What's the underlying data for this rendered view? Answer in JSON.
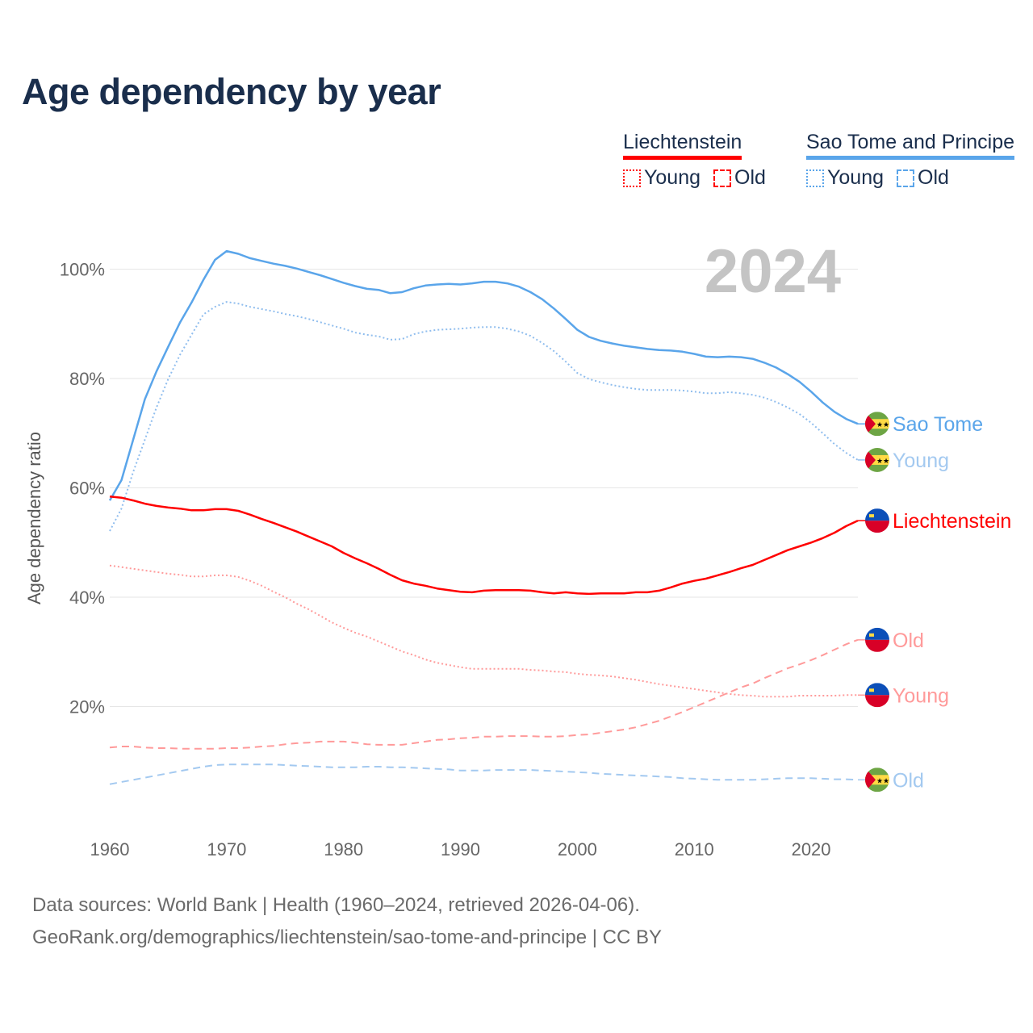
{
  "title": "Age dependency by year",
  "legend": [
    {
      "name": "Liechtenstein",
      "color": "#ff0000",
      "items": [
        {
          "label": "Young",
          "style": "dotted"
        },
        {
          "label": "Old",
          "style": "dashed"
        }
      ]
    },
    {
      "name": "Sao Tome and Principe",
      "color": "#5aa5ea",
      "items": [
        {
          "label": "Young",
          "style": "dotted"
        },
        {
          "label": "Old",
          "style": "dashed"
        }
      ]
    }
  ],
  "year_watermark": "2024",
  "sources": {
    "line1": "Data sources: World Bank | Health (1960–2024, retrieved 2026-04-06).",
    "line2": "GeoRank.org/demographics/liechtenstein/sao-tome-and-principe | CC BY"
  },
  "chart_data": {
    "type": "line",
    "title": "Age dependency by year",
    "xlabel": "",
    "ylabel": "Age dependency ratio",
    "xlim": [
      1960,
      2024
    ],
    "ylim": [
      0,
      105
    ],
    "grid": true,
    "x_ticks": [
      1960,
      1970,
      1980,
      1990,
      2000,
      2010,
      2020
    ],
    "y_ticks": [
      {
        "value": 20,
        "label": "20%"
      },
      {
        "value": 40,
        "label": "40%"
      },
      {
        "value": 60,
        "label": "60%"
      },
      {
        "value": 80,
        "label": "80%"
      },
      {
        "value": 100,
        "label": "100%"
      }
    ],
    "x_start": 1960,
    "series": [
      {
        "name": "Sao Tome and Principe",
        "end_label": "Sao Tome",
        "flag": "sao-tome",
        "color": "#5aa5ea",
        "label_color": "#5aa5ea",
        "dash": "solid",
        "values": [
          57.7,
          61.4,
          68.8,
          76.2,
          81.3,
          85.8,
          90.2,
          93.9,
          98.0,
          101.7,
          103.3,
          102.8,
          102.0,
          101.5,
          101.0,
          100.6,
          100.1,
          99.5,
          98.9,
          98.2,
          97.5,
          96.9,
          96.4,
          96.2,
          95.6,
          95.8,
          96.5,
          97.0,
          97.2,
          97.3,
          97.2,
          97.4,
          97.7,
          97.7,
          97.4,
          96.8,
          95.8,
          94.5,
          92.8,
          90.9,
          88.9,
          87.6,
          86.9,
          86.4,
          86.0,
          85.7,
          85.4,
          85.2,
          85.1,
          84.9,
          84.5,
          84.0,
          83.9,
          84.0,
          83.9,
          83.6,
          82.9,
          82.0,
          80.8,
          79.4,
          77.6,
          75.6,
          73.9,
          72.6,
          71.7
        ]
      },
      {
        "name": "Sao Tome and Principe Young",
        "end_label": "Young",
        "flag": "sao-tome",
        "color": "#8fbdee",
        "label_color": "#a3c9f0",
        "dash": "dotted",
        "values": [
          52.1,
          56.2,
          62.9,
          68.8,
          74.7,
          79.9,
          84.3,
          88.0,
          91.7,
          93.1,
          94.0,
          93.7,
          93.1,
          92.7,
          92.3,
          91.8,
          91.4,
          90.9,
          90.3,
          89.7,
          89.1,
          88.4,
          88.0,
          87.7,
          87.1,
          87.2,
          88.1,
          88.6,
          88.9,
          89.0,
          89.1,
          89.3,
          89.4,
          89.4,
          89.1,
          88.6,
          87.8,
          86.5,
          85.0,
          83.1,
          81.0,
          79.9,
          79.3,
          78.8,
          78.4,
          78.1,
          77.9,
          77.9,
          77.9,
          77.8,
          77.6,
          77.3,
          77.3,
          77.5,
          77.3,
          77.0,
          76.5,
          75.7,
          74.7,
          73.5,
          71.9,
          70.0,
          68.0,
          66.4,
          65.1
        ]
      },
      {
        "name": "Liechtenstein",
        "end_label": "Liechtenstein",
        "flag": "liechtenstein",
        "color": "#ff0000",
        "label_color": "#ff0000",
        "dash": "solid",
        "values": [
          58.4,
          58.2,
          57.7,
          57.1,
          56.7,
          56.4,
          56.2,
          55.9,
          55.9,
          56.1,
          56.1,
          55.8,
          55.1,
          54.3,
          53.6,
          52.8,
          52.0,
          51.1,
          50.2,
          49.3,
          48.1,
          47.1,
          46.2,
          45.2,
          44.1,
          43.1,
          42.5,
          42.1,
          41.6,
          41.3,
          41.0,
          40.9,
          41.2,
          41.3,
          41.3,
          41.3,
          41.2,
          40.9,
          40.7,
          40.9,
          40.7,
          40.6,
          40.7,
          40.7,
          40.7,
          40.9,
          40.9,
          41.2,
          41.8,
          42.5,
          43.0,
          43.4,
          44.0,
          44.6,
          45.3,
          45.9,
          46.8,
          47.7,
          48.6,
          49.3,
          50.0,
          50.8,
          51.8,
          53.0,
          54.0
        ]
      },
      {
        "name": "Liechtenstein Old",
        "end_label": "Old",
        "flag": "liechtenstein",
        "color": "#ff9a9a",
        "label_color": "#ff9a9a",
        "dash": "dashed",
        "values": [
          12.5,
          12.7,
          12.7,
          12.5,
          12.4,
          12.4,
          12.3,
          12.3,
          12.3,
          12.3,
          12.4,
          12.4,
          12.5,
          12.7,
          12.8,
          13.1,
          13.3,
          13.4,
          13.6,
          13.6,
          13.6,
          13.4,
          13.1,
          13.0,
          13.0,
          13.0,
          13.3,
          13.6,
          13.9,
          14.0,
          14.2,
          14.3,
          14.5,
          14.5,
          14.6,
          14.6,
          14.6,
          14.5,
          14.5,
          14.6,
          14.8,
          14.9,
          15.2,
          15.5,
          15.8,
          16.2,
          16.8,
          17.4,
          18.2,
          19.0,
          19.9,
          20.8,
          21.7,
          22.6,
          23.5,
          24.2,
          25.2,
          26.1,
          27.0,
          27.7,
          28.5,
          29.4,
          30.4,
          31.4,
          32.2
        ]
      },
      {
        "name": "Liechtenstein Young",
        "end_label": "Young",
        "flag": "liechtenstein",
        "color": "#ff9a9a",
        "label_color": "#ff9a9a",
        "dash": "dotted",
        "values": [
          45.8,
          45.5,
          45.2,
          44.9,
          44.6,
          44.3,
          44.1,
          43.8,
          43.8,
          44.0,
          44.0,
          43.7,
          43.0,
          42.1,
          41.0,
          40.0,
          38.8,
          37.8,
          36.6,
          35.4,
          34.4,
          33.5,
          32.8,
          31.9,
          31.0,
          30.1,
          29.4,
          28.6,
          28.0,
          27.6,
          27.2,
          26.9,
          26.9,
          26.9,
          26.9,
          26.9,
          26.7,
          26.6,
          26.4,
          26.3,
          26.0,
          25.8,
          25.7,
          25.5,
          25.2,
          24.9,
          24.5,
          24.1,
          23.8,
          23.5,
          23.2,
          22.9,
          22.6,
          22.3,
          22.1,
          22.0,
          21.8,
          21.8,
          21.8,
          22.0,
          22.0,
          22.0,
          22.0,
          22.1,
          22.1
        ]
      },
      {
        "name": "Sao Tome and Principe Old",
        "end_label": "Old",
        "flag": "sao-tome",
        "color": "#a3c9f0",
        "label_color": "#a3c9f0",
        "dash": "dashed",
        "values": [
          5.8,
          6.2,
          6.6,
          7.0,
          7.4,
          7.8,
          8.2,
          8.6,
          9.0,
          9.3,
          9.4,
          9.4,
          9.4,
          9.4,
          9.4,
          9.3,
          9.2,
          9.1,
          9.0,
          8.9,
          8.9,
          8.9,
          9.0,
          9.0,
          8.9,
          8.9,
          8.8,
          8.7,
          8.6,
          8.5,
          8.3,
          8.3,
          8.3,
          8.4,
          8.4,
          8.4,
          8.4,
          8.3,
          8.2,
          8.1,
          8.0,
          7.9,
          7.7,
          7.6,
          7.5,
          7.4,
          7.3,
          7.2,
          7.1,
          6.9,
          6.8,
          6.7,
          6.6,
          6.6,
          6.6,
          6.6,
          6.7,
          6.8,
          6.9,
          6.9,
          6.9,
          6.8,
          6.7,
          6.7,
          6.6
        ]
      }
    ]
  }
}
